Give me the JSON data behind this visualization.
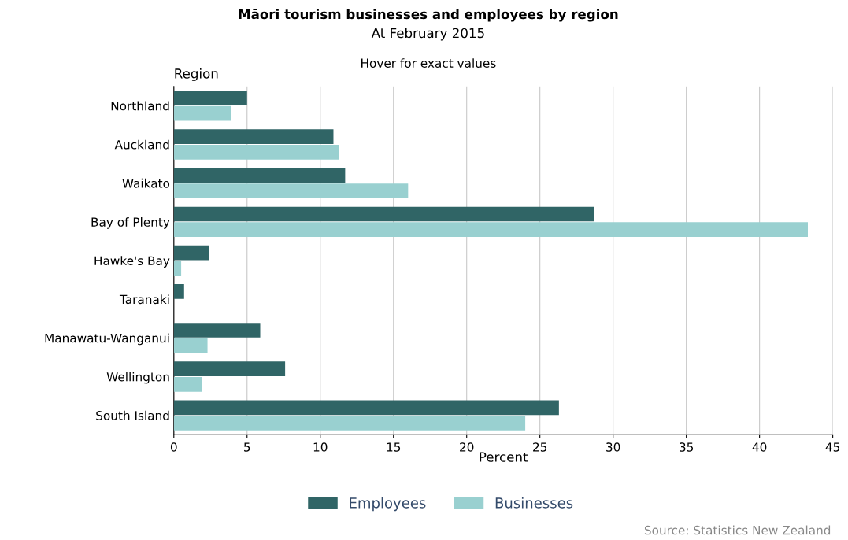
{
  "chart_data": {
    "type": "bar",
    "orientation": "horizontal",
    "title": "Māori tourism businesses and employees by region",
    "subtitle": "At February 2015",
    "annotations": [
      "Hover for exact values",
      "Source: Statistics New Zealand"
    ],
    "xlabel": "Percent",
    "ylabel": "Region",
    "categories": [
      "Northland",
      "Auckland",
      "Waikato",
      "Bay of Plenty",
      "Hawke's Bay",
      "Taranaki",
      "Manawatu-Wanganui",
      "Wellington",
      "South Island"
    ],
    "series": [
      {
        "name": "Employees",
        "color": "#306566",
        "values": [
          5.0,
          10.9,
          11.7,
          28.7,
          2.4,
          0.7,
          5.9,
          7.6,
          26.3
        ]
      },
      {
        "name": "Businesses",
        "color": "#99d0d0",
        "values": [
          3.9,
          11.3,
          16.0,
          43.3,
          0.5,
          0,
          2.3,
          1.9,
          24.0
        ]
      }
    ],
    "xlim": [
      0,
      45
    ],
    "xticks": [
      0,
      5,
      10,
      15,
      20,
      25,
      30,
      35,
      40,
      45
    ],
    "grid": "x",
    "legend": "bottom"
  }
}
